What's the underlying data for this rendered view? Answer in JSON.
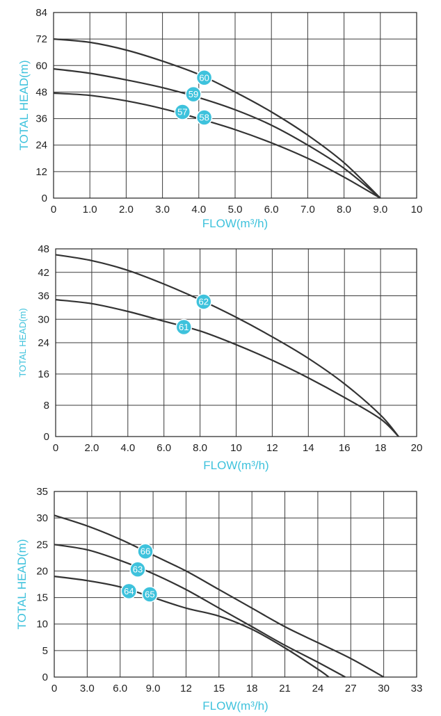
{
  "chart_data": [
    {
      "type": "line",
      "xlabel": "FLOW(m³/h)",
      "ylabel": "TOTAL HEAD(m)",
      "xlim": [
        0,
        10
      ],
      "ylim": [
        0,
        84
      ],
      "x_ticks": [
        0,
        1,
        2,
        3,
        4,
        5,
        6,
        7,
        8,
        9,
        10
      ],
      "x_tick_labels": [
        "0",
        "1.0",
        "2.0",
        "3.0",
        "4.0",
        "5.0",
        "6.0",
        "7.0",
        "8.0",
        "9.0",
        "10"
      ],
      "y_ticks": [
        0,
        12,
        24,
        36,
        48,
        60,
        72,
        84
      ],
      "y_tick_labels": [
        "0",
        "12",
        "24",
        "36",
        "48",
        "60",
        "72",
        "84"
      ],
      "grid": true,
      "series": [
        {
          "x": [
            0,
            1,
            2,
            3,
            4,
            5,
            6,
            7,
            8,
            9
          ],
          "values": [
            72,
            70.5,
            67,
            62,
            56,
            48,
            39,
            28.5,
            16,
            0
          ]
        },
        {
          "x": [
            0,
            1,
            2,
            3,
            4,
            5,
            6,
            7,
            8,
            9
          ],
          "values": [
            58.5,
            56.5,
            53.5,
            50,
            45.5,
            40,
            33,
            24,
            13.5,
            0
          ]
        },
        {
          "x": [
            0,
            1,
            2,
            3,
            4,
            5,
            6,
            7,
            8,
            9
          ],
          "values": [
            47.5,
            46.5,
            44,
            40.5,
            36,
            31,
            25,
            18,
            9.5,
            0
          ]
        }
      ],
      "markers": [
        {
          "label": "60",
          "x": 4.15,
          "y": 54.5
        },
        {
          "label": "59",
          "x": 3.85,
          "y": 47
        },
        {
          "label": "57",
          "x": 3.55,
          "y": 39
        },
        {
          "label": "58",
          "x": 4.15,
          "y": 36.5
        }
      ]
    },
    {
      "type": "line",
      "xlabel": "FLOW(m³/h)",
      "ylabel": "TOTAL HEAD(m)",
      "xlim": [
        0,
        20
      ],
      "ylim": [
        0,
        48
      ],
      "x_ticks": [
        0,
        2,
        4,
        6,
        8,
        10,
        12,
        14,
        16,
        18,
        20
      ],
      "x_tick_labels": [
        "0",
        "2.0",
        "4.0",
        "6.0",
        "8.0",
        "10",
        "12",
        "14",
        "16",
        "18",
        "20"
      ],
      "y_ticks": [
        0,
        8,
        16,
        24,
        30,
        36,
        42,
        48
      ],
      "y_tick_labels": [
        "0",
        "8",
        "16",
        "24",
        "30",
        "36",
        "42",
        "48"
      ],
      "grid": true,
      "series": [
        {
          "x": [
            0,
            2,
            4,
            6,
            8,
            10,
            12,
            14,
            16,
            18,
            19
          ],
          "values": [
            46.5,
            45,
            42.5,
            39,
            35,
            30.5,
            25.5,
            20,
            13.5,
            5.5,
            0
          ]
        },
        {
          "x": [
            0,
            2,
            4,
            6,
            8,
            10,
            12,
            14,
            16,
            18,
            19
          ],
          "values": [
            35,
            34,
            32,
            29.5,
            27,
            23.5,
            19.5,
            15,
            10,
            4.5,
            0
          ]
        }
      ],
      "markers": [
        {
          "label": "62",
          "x": 8.2,
          "y": 34.5
        },
        {
          "label": "61",
          "x": 7.1,
          "y": 28
        }
      ]
    },
    {
      "type": "line",
      "xlabel": "FLOW(m³/h)",
      "ylabel": "TOTAL HEAD(m)",
      "xlim": [
        0,
        33
      ],
      "ylim": [
        0,
        35
      ],
      "x_ticks": [
        0,
        3,
        6,
        9,
        12,
        15,
        18,
        21,
        24,
        27,
        30,
        33
      ],
      "x_tick_labels": [
        "0",
        "3.0",
        "6.0",
        "9.0",
        "12",
        "15",
        "18",
        "21",
        "24",
        "27",
        "30",
        "33"
      ],
      "y_ticks": [
        0,
        5,
        10,
        15,
        20,
        25,
        30,
        35
      ],
      "y_tick_labels": [
        "0",
        "5",
        "10",
        "15",
        "20",
        "25",
        "30",
        "35"
      ],
      "grid": true,
      "series": [
        {
          "x": [
            0,
            3,
            6,
            9,
            12,
            15,
            18,
            21,
            24,
            27,
            30
          ],
          "values": [
            30.5,
            28.5,
            26,
            23,
            20,
            16.5,
            13,
            9.5,
            6.5,
            3.5,
            0
          ]
        },
        {
          "x": [
            0,
            3,
            6,
            9,
            12,
            15,
            18,
            21,
            24,
            26.5
          ],
          "values": [
            25,
            24,
            22,
            19.5,
            16.5,
            13,
            9.5,
            6,
            2.8,
            0
          ]
        },
        {
          "x": [
            0,
            3,
            6,
            9,
            12,
            15,
            18,
            21,
            24,
            25
          ],
          "values": [
            19,
            18.2,
            17,
            15,
            13,
            11.5,
            9,
            5.5,
            1.5,
            0
          ]
        }
      ],
      "markers": [
        {
          "label": "66",
          "x": 8.3,
          "y": 23.7
        },
        {
          "label": "63",
          "x": 7.6,
          "y": 20.3
        },
        {
          "label": "64",
          "x": 6.8,
          "y": 16.2
        },
        {
          "label": "65",
          "x": 8.7,
          "y": 15.6
        }
      ]
    }
  ]
}
